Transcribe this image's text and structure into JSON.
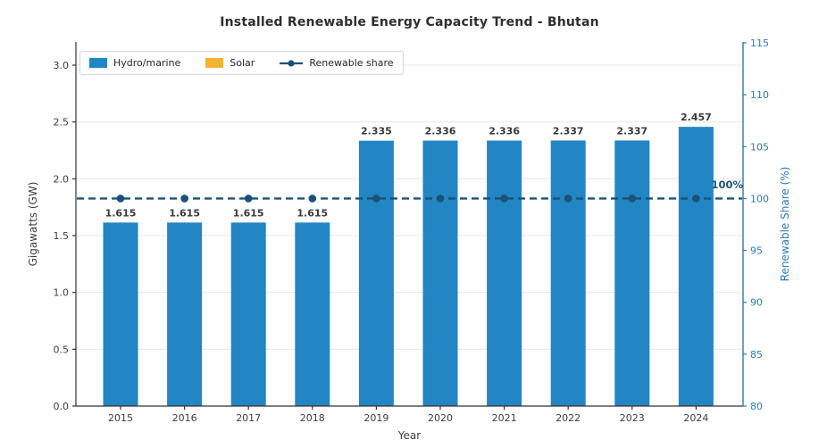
{
  "chart_data": {
    "type": "bar",
    "title": "Installed Renewable Energy Capacity Trend - Bhutan",
    "xlabel": "Year",
    "ylabel_left": "Gigawatts (GW)",
    "ylabel_right": "Renewable Share (%)",
    "categories": [
      "2015",
      "2016",
      "2017",
      "2018",
      "2019",
      "2020",
      "2021",
      "2022",
      "2023",
      "2024"
    ],
    "series": [
      {
        "name": "Hydro/marine",
        "type": "bar",
        "axis": "left",
        "color": "#2285c4",
        "values": [
          1.615,
          1.615,
          1.615,
          1.615,
          2.335,
          2.336,
          2.336,
          2.337,
          2.337,
          2.457
        ],
        "value_labels": [
          "1.615",
          "1.615",
          "1.615",
          "1.615",
          "2.335",
          "2.336",
          "2.336",
          "2.337",
          "2.337",
          "2.457"
        ]
      },
      {
        "name": "Solar",
        "type": "bar",
        "axis": "left",
        "color": "#f4b331",
        "values": [
          0,
          0,
          0,
          0,
          0,
          0,
          0,
          0,
          0,
          0
        ],
        "value_labels": []
      },
      {
        "name": "Renewable share",
        "type": "line",
        "axis": "right",
        "style": "dashed",
        "marker": "circle",
        "color": "#1a5276",
        "values": [
          100,
          100,
          100,
          100,
          100,
          100,
          100,
          100,
          100,
          100
        ]
      }
    ],
    "yticks_left": {
      "values": [
        0,
        0.5,
        1,
        1.5,
        2,
        2.5,
        3
      ],
      "labels": [
        "0.0",
        "0.5",
        "1.0",
        "1.5",
        "2.0",
        "2.5",
        "3.0"
      ]
    },
    "yticks_right": {
      "values": [
        80,
        85,
        90,
        95,
        100,
        105,
        110,
        115
      ],
      "labels": [
        "80",
        "85",
        "90",
        "95",
        "100",
        "105",
        "110",
        "115"
      ]
    },
    "ylim_left": [
      0,
      3.2
    ],
    "ylim_right": [
      80,
      115
    ],
    "reference_line": {
      "value": 100,
      "axis": "right",
      "label": "100%"
    },
    "grid": "horizontal",
    "legend_position": "upper-left",
    "colors": {
      "left_axis": "#333333",
      "right_axis": "#2d7bb2",
      "gridline": "#e7e7e7",
      "tick_text": "#3d3d3d",
      "value_label_text": "#3a3a3a",
      "annotation_text": "#1a5276"
    }
  }
}
